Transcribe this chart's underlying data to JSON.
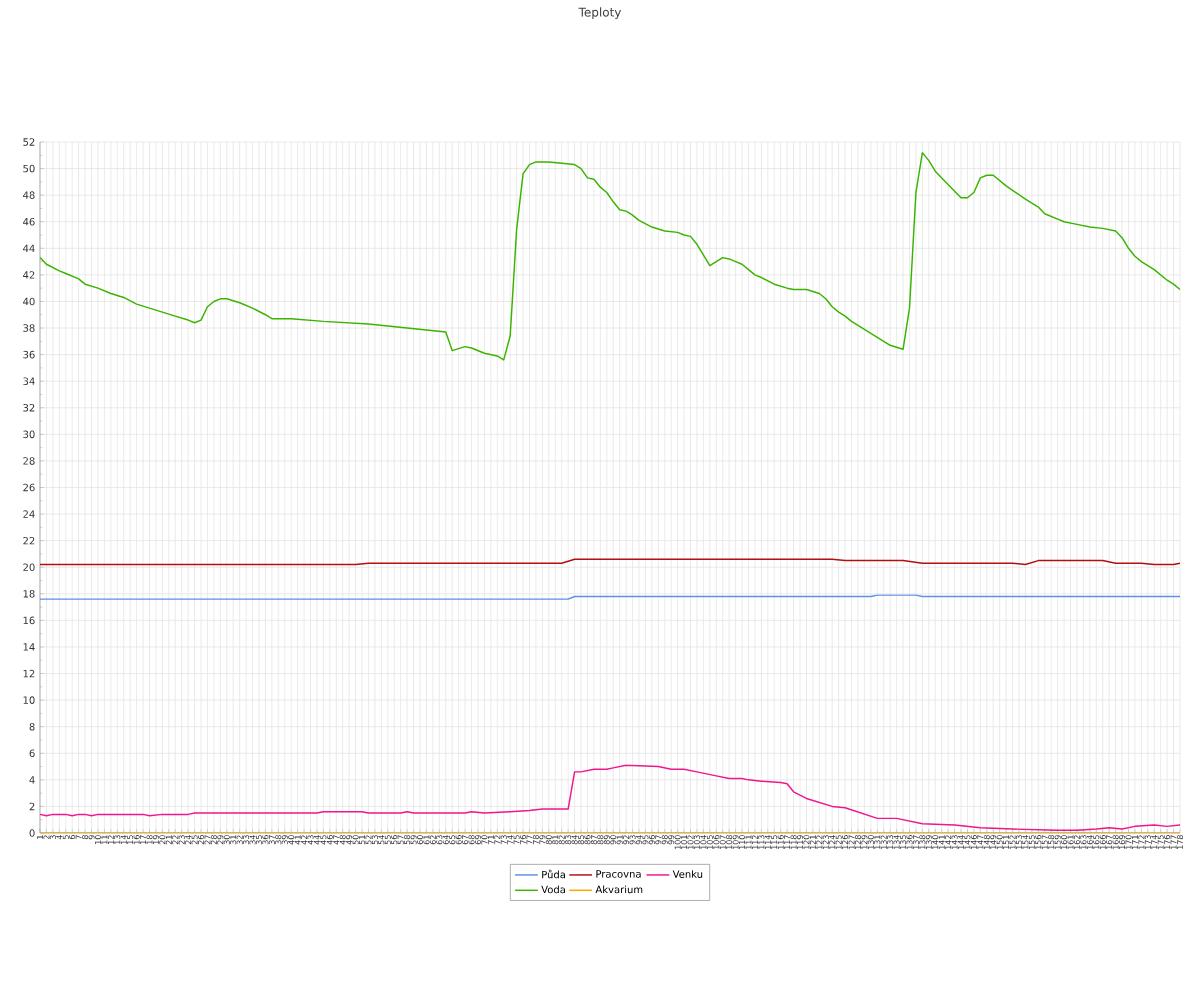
{
  "chart_data": {
    "type": "line",
    "title": "Teploty",
    "xlim": [
      1,
      178
    ],
    "xticks": [
      1,
      2,
      3,
      4,
      5,
      6,
      7,
      8,
      9,
      10,
      11,
      12,
      13,
      14,
      15,
      16,
      17,
      18,
      19,
      20,
      21,
      22,
      23,
      24,
      25,
      26,
      27,
      28,
      29,
      30,
      31,
      32,
      33,
      34,
      35,
      36,
      37,
      38,
      39,
      40,
      41,
      42,
      43,
      44,
      45,
      46,
      47,
      48,
      49,
      50,
      51,
      52,
      53,
      54,
      55,
      56,
      57,
      58,
      59,
      60,
      61,
      62,
      63,
      64,
      65,
      66,
      67,
      68,
      69,
      70,
      71,
      72,
      73,
      74,
      75,
      76,
      77,
      78,
      79,
      80,
      81,
      82,
      83,
      84,
      85,
      86,
      87,
      88,
      89,
      90,
      91,
      92,
      93,
      94,
      95,
      96,
      97,
      98,
      99,
      100,
      101,
      102,
      103,
      104,
      105,
      106,
      107,
      108,
      109,
      110,
      111,
      112,
      113,
      114,
      115,
      116,
      117,
      118,
      119,
      120,
      121,
      122,
      123,
      124,
      125,
      126,
      127,
      128,
      129,
      130,
      131,
      132,
      133,
      134,
      135,
      136,
      137,
      138,
      139,
      140,
      141,
      142,
      143,
      144,
      145,
      146,
      147,
      148,
      149,
      150,
      151,
      152,
      153,
      154,
      155,
      156,
      157,
      158,
      159,
      160,
      161,
      162,
      163,
      164,
      165,
      166,
      167,
      168,
      169,
      170,
      171,
      172,
      173,
      174,
      175,
      176,
      177,
      178
    ],
    "ylim": [
      0,
      52
    ],
    "yticks": [
      0,
      2,
      4,
      6,
      8,
      10,
      12,
      14,
      16,
      18,
      20,
      22,
      24,
      26,
      28,
      30,
      32,
      34,
      36,
      38,
      40,
      42,
      44,
      46,
      48,
      50,
      52
    ],
    "grid": true,
    "legend": "bottom",
    "marker": "none",
    "line_style": "solid",
    "series": [
      {
        "name": "Půda",
        "color": "#5b8fe8",
        "x": [
          1,
          83,
          84,
          130,
          131,
          137,
          138,
          178
        ],
        "values": [
          17.6,
          17.6,
          17.8,
          17.8,
          17.9,
          17.9,
          17.8,
          17.8
        ]
      },
      {
        "name": "Voda",
        "color": "#3cb300",
        "x": [
          1,
          2,
          4,
          5,
          7,
          8,
          10,
          12,
          14,
          16,
          18,
          20,
          22,
          24,
          25,
          26,
          27,
          28,
          29,
          30,
          32,
          34,
          36,
          37,
          40,
          45,
          52,
          58,
          62,
          64,
          65,
          67,
          68,
          70,
          72,
          73,
          74,
          75,
          76,
          77,
          78,
          80,
          82,
          84,
          85,
          86,
          87,
          88,
          89,
          90,
          91,
          92,
          93,
          94,
          96,
          98,
          100,
          101,
          102,
          103,
          105,
          106,
          107,
          108,
          109,
          110,
          111,
          112,
          113,
          115,
          117,
          118,
          120,
          122,
          123,
          124,
          125,
          126,
          127,
          129,
          131,
          132,
          133,
          135,
          136,
          137,
          138,
          139,
          140,
          141,
          143,
          144,
          145,
          146,
          147,
          148,
          149,
          150,
          151,
          154,
          156,
          157,
          159,
          160,
          162,
          164,
          166,
          168,
          169,
          170,
          171,
          172,
          174,
          176,
          177,
          178
        ],
        "values": [
          43.3,
          42.8,
          42.3,
          42.1,
          41.7,
          41.3,
          41.0,
          40.6,
          40.3,
          39.8,
          39.5,
          39.2,
          38.9,
          38.6,
          38.4,
          38.6,
          39.6,
          40.0,
          40.2,
          40.2,
          39.9,
          39.5,
          39.0,
          38.7,
          38.7,
          38.5,
          38.3,
          38.0,
          37.8,
          37.7,
          36.3,
          36.6,
          36.5,
          36.1,
          35.9,
          35.6,
          37.4,
          45.4,
          49.6,
          50.3,
          50.5,
          50.5,
          50.4,
          50.3,
          50.0,
          49.3,
          49.2,
          48.6,
          48.2,
          47.5,
          46.9,
          46.8,
          46.5,
          46.1,
          45.6,
          45.3,
          45.2,
          45.0,
          44.9,
          44.3,
          42.7,
          43.0,
          43.3,
          43.2,
          43.0,
          42.8,
          42.4,
          42.0,
          41.8,
          41.3,
          41.0,
          40.9,
          40.9,
          40.6,
          40.2,
          39.6,
          39.2,
          38.9,
          38.5,
          37.9,
          37.3,
          37.0,
          36.7,
          36.4,
          39.5,
          48.2,
          51.2,
          50.6,
          49.8,
          49.3,
          48.3,
          47.8,
          47.8,
          48.2,
          49.3,
          49.5,
          49.5,
          49.1,
          48.7,
          47.7,
          47.1,
          46.6,
          46.2,
          46.0,
          45.8,
          45.6,
          45.5,
          45.3,
          44.8,
          44.0,
          43.4,
          43.0,
          42.4,
          41.6,
          41.3,
          40.9
        ]
      },
      {
        "name": "Pracovna",
        "color": "#b01010",
        "x": [
          1,
          50,
          52,
          82,
          84,
          124,
          126,
          135,
          138,
          152,
          154,
          156,
          166,
          168,
          172,
          174,
          177,
          178
        ],
        "values": [
          20.2,
          20.2,
          20.3,
          20.3,
          20.6,
          20.6,
          20.5,
          20.5,
          20.3,
          20.3,
          20.2,
          20.5,
          20.5,
          20.3,
          20.3,
          20.2,
          20.2,
          20.3
        ]
      },
      {
        "name": "Akvarium",
        "color": "#ffa500",
        "x": [
          1,
          178
        ],
        "values": [
          0,
          0
        ]
      },
      {
        "name": "Venku",
        "color": "#f0168c",
        "x": [
          1,
          2,
          3,
          5,
          6,
          7,
          8,
          9,
          10,
          17,
          18,
          20,
          24,
          25,
          44,
          45,
          51,
          52,
          57,
          58,
          59,
          67,
          68,
          70,
          74,
          77,
          79,
          83,
          84,
          85,
          87,
          89,
          90,
          92,
          97,
          99,
          101,
          103,
          106,
          108,
          110,
          111,
          113,
          116,
          117,
          118,
          120,
          124,
          126,
          131,
          134,
          138,
          143,
          147,
          152,
          159,
          162,
          165,
          167,
          169,
          171,
          174,
          176,
          178
        ],
        "values": [
          1.4,
          1.3,
          1.4,
          1.4,
          1.3,
          1.4,
          1.4,
          1.3,
          1.4,
          1.4,
          1.3,
          1.4,
          1.4,
          1.5,
          1.5,
          1.6,
          1.6,
          1.5,
          1.5,
          1.6,
          1.5,
          1.5,
          1.6,
          1.5,
          1.6,
          1.7,
          1.8,
          1.8,
          4.6,
          4.6,
          4.8,
          4.8,
          4.9,
          5.1,
          5.0,
          4.8,
          4.8,
          4.6,
          4.3,
          4.1,
          4.1,
          4.0,
          3.9,
          3.8,
          3.7,
          3.1,
          2.6,
          2.0,
          1.9,
          1.1,
          1.1,
          0.7,
          0.6,
          0.4,
          0.3,
          0.2,
          0.2,
          0.3,
          0.4,
          0.3,
          0.5,
          0.6,
          0.5,
          0.6
        ]
      }
    ]
  }
}
